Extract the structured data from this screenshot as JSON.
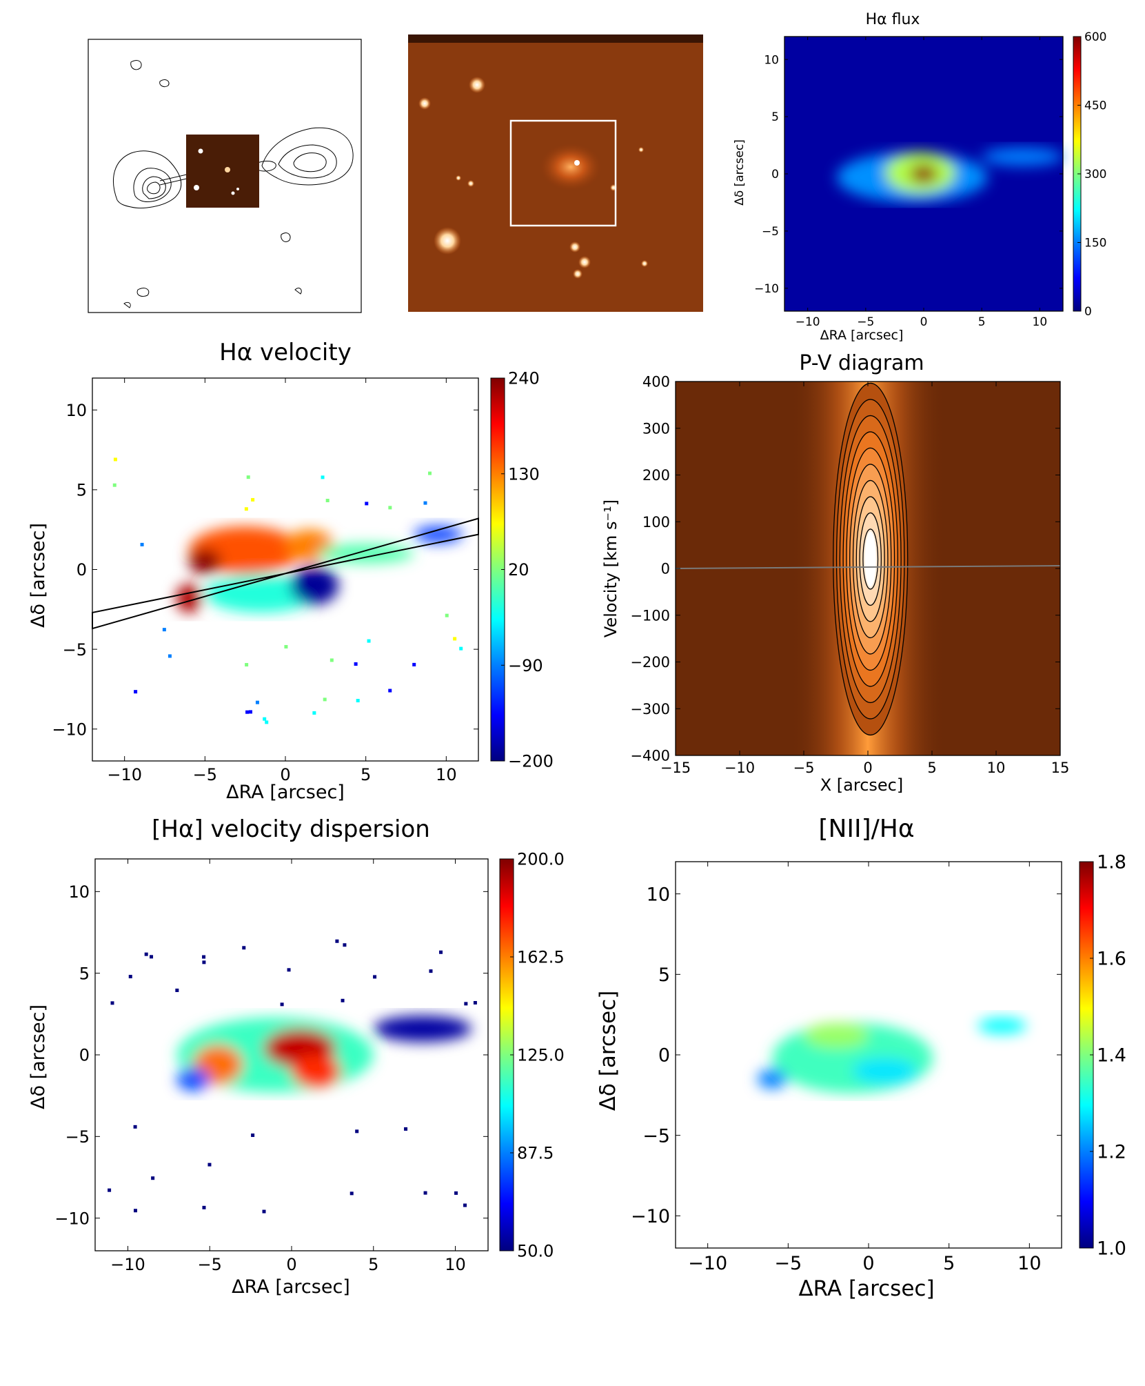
{
  "colormaps": {
    "jet": [
      "#00007f",
      "#0000ff",
      "#007fff",
      "#00ffff",
      "#7fff7f",
      "#ffff00",
      "#ff7f00",
      "#ff0000",
      "#7f0000"
    ],
    "hot_orange": [
      "#2a0e02",
      "#6b2a08",
      "#b5500f",
      "#f07a22",
      "#ffc080",
      "#ffffff"
    ]
  },
  "panels": {
    "radio": {
      "label": "radio contour map with inset image"
    },
    "optical": {
      "label": "optical image with selection box"
    }
  },
  "chart_data": [
    {
      "id": "ha_flux",
      "type": "heatmap",
      "title": "Hα flux",
      "xlabel": "ΔRA [arcsec]",
      "ylabel": "Δδ [arcsec]",
      "xlim": [
        -12,
        12
      ],
      "ylim": [
        -12,
        12
      ],
      "xticks": [
        -10,
        -5,
        0,
        5,
        10
      ],
      "yticks": [
        -10,
        -5,
        0,
        5,
        10
      ],
      "colorbar": {
        "min": 0,
        "max": 600,
        "ticks": [
          0,
          150,
          300,
          450,
          600
        ]
      },
      "background_value": 20,
      "blobs": [
        {
          "cx": 0,
          "cy": 0,
          "rx": 1.2,
          "ry": 0.8,
          "value": 590
        },
        {
          "cx": -0.3,
          "cy": 0.1,
          "rx": 3.0,
          "ry": 1.8,
          "value": 330
        },
        {
          "cx": -1,
          "cy": -0.3,
          "rx": 6.5,
          "ry": 2.2,
          "value": 160
        },
        {
          "cx": 8.5,
          "cy": 1.5,
          "rx": 3.5,
          "ry": 0.8,
          "value": 150
        }
      ]
    },
    {
      "id": "ha_velocity",
      "type": "heatmap",
      "title": "Hα velocity",
      "xlabel": "ΔRA [arcsec]",
      "ylabel": "Δδ [arcsec]",
      "xlim": [
        -12,
        12
      ],
      "ylim": [
        -12,
        12
      ],
      "xticks": [
        -10,
        -5,
        0,
        5,
        10
      ],
      "yticks": [
        -10,
        -5,
        0,
        5,
        10
      ],
      "colorbar": {
        "min": -200,
        "max": 240,
        "ticks": [
          -200,
          -90,
          20,
          130,
          240
        ]
      },
      "regions": [
        {
          "cx": -2.5,
          "cy": 1.2,
          "rx": 3.5,
          "ry": 1.5,
          "value": 150
        },
        {
          "cx": -5,
          "cy": 0.5,
          "rx": 1.0,
          "ry": 0.8,
          "value": 235
        },
        {
          "cx": -6,
          "cy": -1.8,
          "rx": 0.8,
          "ry": 0.9,
          "value": 220
        },
        {
          "cx": 1.5,
          "cy": 1.5,
          "rx": 1.5,
          "ry": 1.0,
          "value": 130
        },
        {
          "cx": -1.5,
          "cy": -1.5,
          "rx": 3.5,
          "ry": 1.2,
          "value": -20
        },
        {
          "cx": 1.8,
          "cy": -1.0,
          "rx": 1.5,
          "ry": 1.2,
          "value": -190
        },
        {
          "cx": 5,
          "cy": 1.0,
          "rx": 3.0,
          "ry": 0.6,
          "value": 0
        },
        {
          "cx": 9.5,
          "cy": 2.2,
          "rx": 1.5,
          "ry": 0.5,
          "value": -120
        }
      ],
      "slit": {
        "corners": [
          [
            -12,
            -3.7
          ],
          [
            12,
            3.2
          ],
          [
            12,
            2.2
          ],
          [
            -12,
            -2.7
          ]
        ]
      }
    },
    {
      "id": "pv_diagram",
      "type": "heatmap",
      "title": "P-V diagram",
      "xlabel": "X [arcsec]",
      "ylabel": "Velocity [km s⁻¹]",
      "xlim": [
        -15,
        15
      ],
      "ylim": [
        -400,
        400
      ],
      "xticks": [
        -15,
        -10,
        -5,
        0,
        5,
        10,
        15
      ],
      "yticks": [
        -400,
        -300,
        -200,
        -100,
        0,
        100,
        200,
        300,
        400
      ],
      "zero_line": 0,
      "contour_levels": 10
    },
    {
      "id": "ha_dispersion",
      "type": "heatmap",
      "title": "[Hα] velocity dispersion",
      "xlabel": "ΔRA [arcsec]",
      "ylabel": "Δδ [arcsec]",
      "xlim": [
        -12,
        12
      ],
      "ylim": [
        -12,
        12
      ],
      "xticks": [
        -10,
        -5,
        0,
        5,
        10
      ],
      "yticks": [
        -10,
        -5,
        0,
        5,
        10
      ],
      "colorbar": {
        "min": 50.0,
        "max": 200.0,
        "ticks": [
          "50.0",
          "87.5",
          "125.0",
          "162.5",
          "200.0"
        ]
      },
      "regions": [
        {
          "cx": -1,
          "cy": 0,
          "rx": 6.0,
          "ry": 2.3,
          "value": 115
        },
        {
          "cx": 0.5,
          "cy": 0.4,
          "rx": 2.2,
          "ry": 1.2,
          "value": 190
        },
        {
          "cx": -4.5,
          "cy": -0.6,
          "rx": 1.5,
          "ry": 1.2,
          "value": 165
        },
        {
          "cx": 1.5,
          "cy": -1.0,
          "rx": 1.5,
          "ry": 1.0,
          "value": 175
        },
        {
          "cx": -6,
          "cy": -1.5,
          "rx": 1.0,
          "ry": 0.7,
          "value": 80
        },
        {
          "cx": 8,
          "cy": 1.6,
          "rx": 3.0,
          "ry": 0.8,
          "value": 55
        }
      ]
    },
    {
      "id": "nii_ha",
      "type": "heatmap",
      "title": "[NII]/Hα",
      "xlabel": "ΔRA [arcsec]",
      "ylabel": "Δδ [arcsec]",
      "xlim": [
        -12,
        12
      ],
      "ylim": [
        -12,
        12
      ],
      "xticks": [
        -10,
        -5,
        0,
        5,
        10
      ],
      "yticks": [
        -10,
        -5,
        0,
        5,
        10
      ],
      "colorbar": {
        "min": 1.0,
        "max": 1.8,
        "ticks": [
          "1.0",
          "1.2",
          "1.4",
          "1.6",
          "1.8"
        ]
      },
      "regions": [
        {
          "cx": -1,
          "cy": -0.2,
          "rx": 5.0,
          "ry": 2.2,
          "value": 1.35
        },
        {
          "cx": -2,
          "cy": 1.2,
          "rx": 2.0,
          "ry": 0.8,
          "value": 1.42
        },
        {
          "cx": 1,
          "cy": -1,
          "rx": 2.0,
          "ry": 0.8,
          "value": 1.28
        },
        {
          "cx": -6,
          "cy": -1.5,
          "rx": 0.9,
          "ry": 0.6,
          "value": 1.2
        },
        {
          "cx": 8.3,
          "cy": 1.8,
          "rx": 1.5,
          "ry": 0.5,
          "value": 1.3
        }
      ]
    }
  ]
}
